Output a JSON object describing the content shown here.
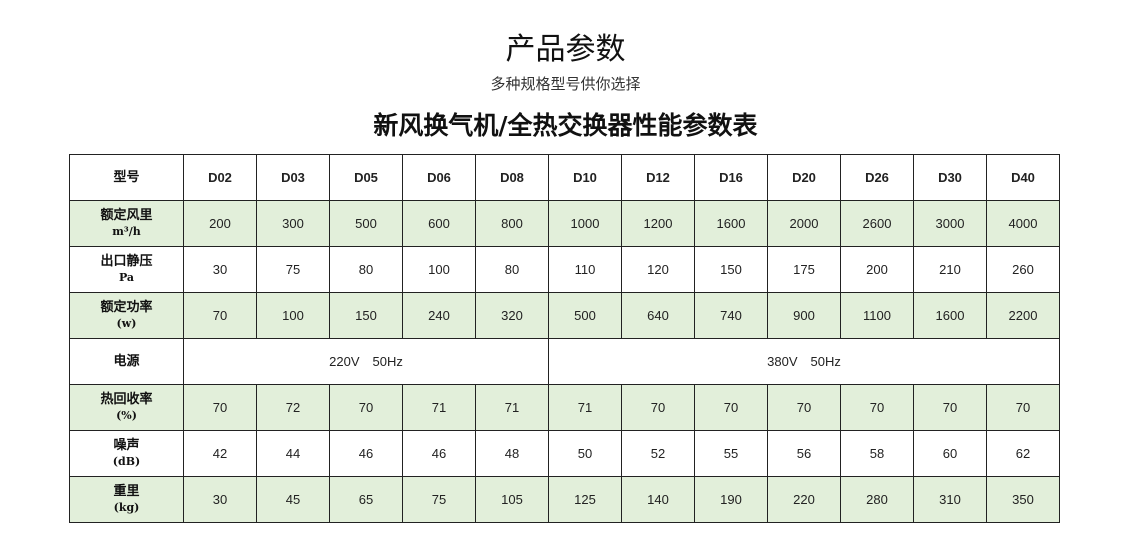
{
  "title": "产品参数",
  "subtitle": "多种规格型号供你选择",
  "table_title": "新风换气机/全热交换器性能参数表",
  "header": {
    "label": "型号",
    "models": [
      "D02",
      "D03",
      "D05",
      "D06",
      "D08",
      "D10",
      "D12",
      "D16",
      "D20",
      "D26",
      "D30",
      "D40"
    ]
  },
  "rows": [
    {
      "label": "额定风里",
      "unit": "m³/h",
      "values": [
        "200",
        "300",
        "500",
        "600",
        "800",
        "1000",
        "1200",
        "1600",
        "2000",
        "2600",
        "3000",
        "4000"
      ],
      "green": true
    },
    {
      "label": "出口静压",
      "unit": "Pa",
      "values": [
        "30",
        "75",
        "80",
        "100",
        "80",
        "110",
        "120",
        "150",
        "175",
        "200",
        "210",
        "260"
      ],
      "green": false
    },
    {
      "label": "额定功率",
      "unit": "(w)",
      "values": [
        "70",
        "100",
        "150",
        "240",
        "320",
        "500",
        "640",
        "740",
        "900",
        "1100",
        "1600",
        "2200"
      ],
      "green": true
    }
  ],
  "power": {
    "label": "电源",
    "left": "220V　50Hz",
    "right": "380V　50Hz"
  },
  "rows2": [
    {
      "label": "热回收率",
      "unit": "(%)",
      "values": [
        "70",
        "72",
        "70",
        "71",
        "71",
        "71",
        "70",
        "70",
        "70",
        "70",
        "70",
        "70"
      ],
      "green": true
    },
    {
      "label": "噪声",
      "unit": "(dB)",
      "values": [
        "42",
        "44",
        "46",
        "46",
        "48",
        "50",
        "52",
        "55",
        "56",
        "58",
        "60",
        "62"
      ],
      "green": false
    },
    {
      "label": "重里",
      "unit": "(kg)",
      "values": [
        "30",
        "45",
        "65",
        "75",
        "105",
        "125",
        "140",
        "190",
        "220",
        "280",
        "310",
        "350"
      ],
      "green": true
    }
  ],
  "colors": {
    "row_green": "#e2efda",
    "border": "#222222"
  }
}
